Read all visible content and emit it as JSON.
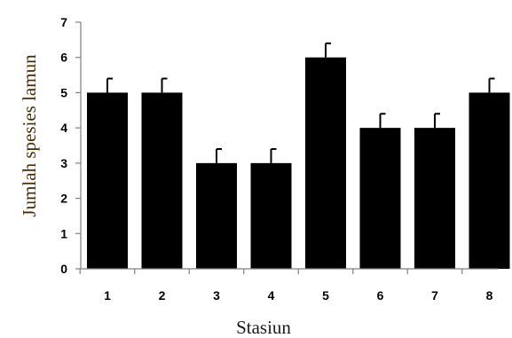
{
  "chart_data": {
    "type": "bar",
    "title": "",
    "xlabel": "Stasiun",
    "ylabel": "Jumlah spesies lamun",
    "categories": [
      "1",
      "2",
      "3",
      "4",
      "5",
      "6",
      "7",
      "8"
    ],
    "values": [
      5,
      5,
      3,
      3,
      6,
      4,
      4,
      5
    ],
    "error": [
      0.4,
      0.4,
      0.4,
      0.4,
      0.4,
      0.4,
      0.4,
      0.4
    ],
    "ylim": [
      0,
      7
    ],
    "yticks": [
      "0",
      "1",
      "2",
      "3",
      "4",
      "5",
      "6",
      "7"
    ],
    "grid": false,
    "legend": "none",
    "colors": {
      "bar": "#000000",
      "axis": "#808080",
      "ylabel": "#4a2a00",
      "xlabel": "#1a1a1a"
    }
  }
}
